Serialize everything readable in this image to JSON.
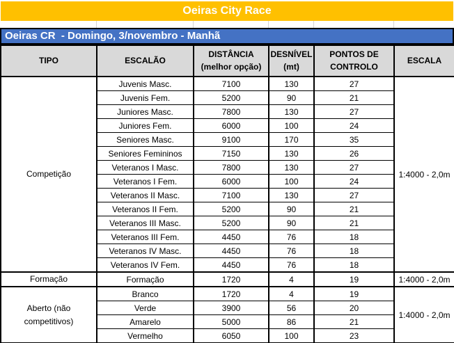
{
  "title": {
    "text": "Oeiras City Race"
  },
  "subtitle": {
    "text": "Oeiras CR  - Domingo, 3/novembro - Manhã"
  },
  "colors": {
    "title_bg": "#FFC000",
    "subtitle_bg": "#4472C4",
    "header_bg": "#D9D9D9",
    "border": "#000000",
    "gridline": "#D4D4D4",
    "banner_text": "#FFFFFF",
    "body_text": "#000000"
  },
  "table": {
    "headers": [
      "TIPO",
      "ESCALÃO",
      "DISTÂNCIA\n(melhor opção)",
      "DESNÍVEL\n(mt)",
      "PONTOS DE\nCONTROLO",
      "ESCALA"
    ],
    "sections": [
      {
        "tipo": "Competição",
        "escala": "1:4000 - 2,0m",
        "rows": [
          [
            "Juvenis Masc.",
            "7100",
            "130",
            "27"
          ],
          [
            "Juvenis Fem.",
            "5200",
            "90",
            "21"
          ],
          [
            "Juniores Masc.",
            "7800",
            "130",
            "27"
          ],
          [
            "Juniores Fem.",
            "6000",
            "100",
            "24"
          ],
          [
            "Seniores Masc.",
            "9100",
            "170",
            "35"
          ],
          [
            "Seniores Femininos",
            "7150",
            "130",
            "26"
          ],
          [
            "Veteranos I Masc.",
            "7800",
            "130",
            "27"
          ],
          [
            "Veteranos I Fem.",
            "6000",
            "100",
            "24"
          ],
          [
            "Veteranos II Masc.",
            "7100",
            "130",
            "27"
          ],
          [
            "Veteranos II Fem.",
            "5200",
            "90",
            "21"
          ],
          [
            "Veteranos III Masc.",
            "5200",
            "90",
            "21"
          ],
          [
            "Veteranos III Fem.",
            "4450",
            "76",
            "18"
          ],
          [
            "Veteranos IV Masc.",
            "4450",
            "76",
            "18"
          ],
          [
            "Veteranos IV Fem.",
            "4450",
            "76",
            "18"
          ]
        ]
      },
      {
        "tipo": "Formação",
        "escala": "1:4000 - 2,0m",
        "rows": [
          [
            "Formação",
            "1720",
            "4",
            "19"
          ]
        ]
      },
      {
        "tipo": "Aberto (não competitivos)",
        "escala": "1:4000 - 2,0m",
        "rows": [
          [
            "Branco",
            "1720",
            "4",
            "19"
          ],
          [
            "Verde",
            "3900",
            "56",
            "20"
          ],
          [
            "Amarelo",
            "5000",
            "86",
            "21"
          ],
          [
            "Vermelho",
            "6050",
            "100",
            "23"
          ]
        ]
      }
    ]
  }
}
